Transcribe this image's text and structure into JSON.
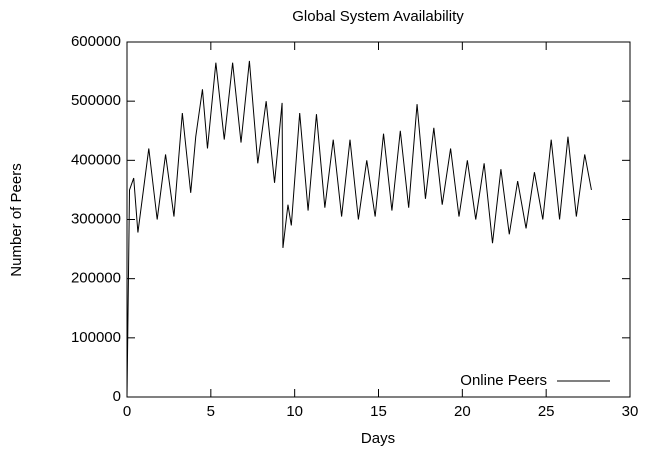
{
  "chart_data": {
    "type": "line",
    "title": "Global System Availability",
    "x_label": "Days",
    "y_label": "Number of Peers",
    "x": [
      0,
      0.15,
      0.4,
      0.65,
      1.3,
      1.8,
      2.3,
      2.8,
      3.3,
      3.8,
      4.1,
      4.5,
      4.8,
      5.3,
      5.8,
      6.3,
      6.8,
      7.3,
      7.8,
      8.3,
      8.8,
      9.25,
      9.3,
      9.6,
      9.8,
      10.3,
      10.8,
      11.3,
      11.8,
      12.3,
      12.8,
      13.3,
      13.8,
      14.3,
      14.8,
      15.3,
      15.8,
      16.3,
      16.8,
      17.3,
      17.8,
      18.3,
      18.8,
      19.3,
      19.8,
      20.3,
      20.8,
      21.3,
      21.8,
      22.3,
      22.8,
      23.3,
      23.8,
      24.3,
      24.8,
      25.3,
      25.8,
      26.3,
      26.8,
      27.3,
      27.7
    ],
    "series": [
      {
        "name": "Online Peers",
        "color": "#000000",
        "values": [
          0,
          350000,
          370000,
          278000,
          420000,
          300000,
          410000,
          305000,
          480000,
          345000,
          440000,
          520000,
          420000,
          565000,
          435000,
          565000,
          430000,
          568000,
          395000,
          500000,
          362000,
          497000,
          252000,
          325000,
          290000,
          480000,
          315000,
          478000,
          320000,
          435000,
          305000,
          435000,
          300000,
          400000,
          305000,
          445000,
          315000,
          450000,
          320000,
          495000,
          335000,
          455000,
          325000,
          420000,
          305000,
          400000,
          300000,
          395000,
          260000,
          385000,
          275000,
          365000,
          285000,
          380000,
          300000,
          435000,
          300000,
          440000,
          305000,
          410000,
          350000
        ]
      }
    ],
    "xlim": [
      0,
      30
    ],
    "xticks": [
      0,
      5,
      10,
      15,
      20,
      25,
      30
    ],
    "ylim": [
      0,
      600000
    ],
    "yticks": [
      0,
      100000,
      200000,
      300000,
      400000,
      500000,
      600000
    ],
    "grid": false,
    "legend_position": "lower right"
  }
}
